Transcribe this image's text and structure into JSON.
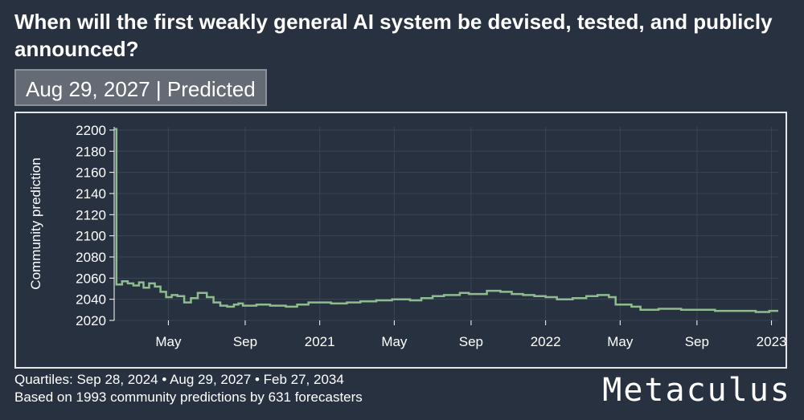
{
  "title": "When will the first weakly general AI system be devised, tested, and publicly announced?",
  "badge": "Aug 29, 2027 | Predicted",
  "footer": {
    "quartiles": "Quartiles: Sep 28, 2024 • Aug 29, 2027 • Feb 27, 2034",
    "based_on": "Based on 1993 community predictions by 631 forecasters"
  },
  "brand": "Metaculus",
  "colors": {
    "background": "#283140",
    "line": "#8fbc8f",
    "grid": "#3a4454"
  },
  "chart_data": {
    "type": "line",
    "step": true,
    "title": "",
    "xlabel": "",
    "ylabel": "Community prediction",
    "xlim": [
      2020.09,
      2023.03
    ],
    "ylim": [
      2020,
      2203
    ],
    "yticks": [
      2020,
      2040,
      2060,
      2080,
      2100,
      2120,
      2140,
      2160,
      2180,
      2200
    ],
    "xticks": [
      {
        "label": "May",
        "x": 2020.33
      },
      {
        "label": "Sep",
        "x": 2020.67
      },
      {
        "label": "2021",
        "x": 2021.0
      },
      {
        "label": "May",
        "x": 2021.33
      },
      {
        "label": "Sep",
        "x": 2021.67
      },
      {
        "label": "2022",
        "x": 2022.0
      },
      {
        "label": "May",
        "x": 2022.33
      },
      {
        "label": "Sep",
        "x": 2022.67
      },
      {
        "label": "2023",
        "x": 2023.0
      }
    ],
    "series": [
      {
        "name": "Community prediction",
        "x": [
          2020.09,
          2020.1,
          2020.125,
          2020.15,
          2020.175,
          2020.2,
          2020.22,
          2020.245,
          2020.27,
          2020.295,
          2020.32,
          2020.345,
          2020.37,
          2020.4,
          2020.43,
          2020.46,
          2020.5,
          2020.53,
          2020.56,
          2020.59,
          2020.62,
          2020.64,
          2020.66,
          2020.72,
          2020.78,
          2020.85,
          2020.9,
          2020.95,
          2021.05,
          2021.12,
          2021.18,
          2021.25,
          2021.32,
          2021.4,
          2021.45,
          2021.5,
          2021.55,
          2021.62,
          2021.66,
          2021.74,
          2021.8,
          2021.85,
          2021.9,
          2021.95,
          2022.0,
          2022.05,
          2022.12,
          2022.18,
          2022.23,
          2022.28,
          2022.31,
          2022.38,
          2022.42,
          2022.5,
          2022.6,
          2022.75,
          2022.85,
          2022.93,
          2022.99,
          2023.03
        ],
        "y": [
          2201,
          2054,
          2057,
          2055,
          2053,
          2056,
          2051,
          2055,
          2052,
          2047,
          2042,
          2044,
          2043,
          2037,
          2041,
          2046,
          2042,
          2037,
          2034,
          2033,
          2035,
          2036,
          2034,
          2035,
          2034,
          2033,
          2035,
          2037,
          2036,
          2037,
          2038,
          2039,
          2040,
          2039,
          2041,
          2043,
          2044,
          2046,
          2045,
          2048,
          2047,
          2045,
          2044,
          2043,
          2042,
          2040,
          2041,
          2043,
          2044,
          2042,
          2035,
          2033,
          2030,
          2031,
          2030,
          2029,
          2029,
          2028,
          2029,
          2029
        ]
      }
    ]
  }
}
